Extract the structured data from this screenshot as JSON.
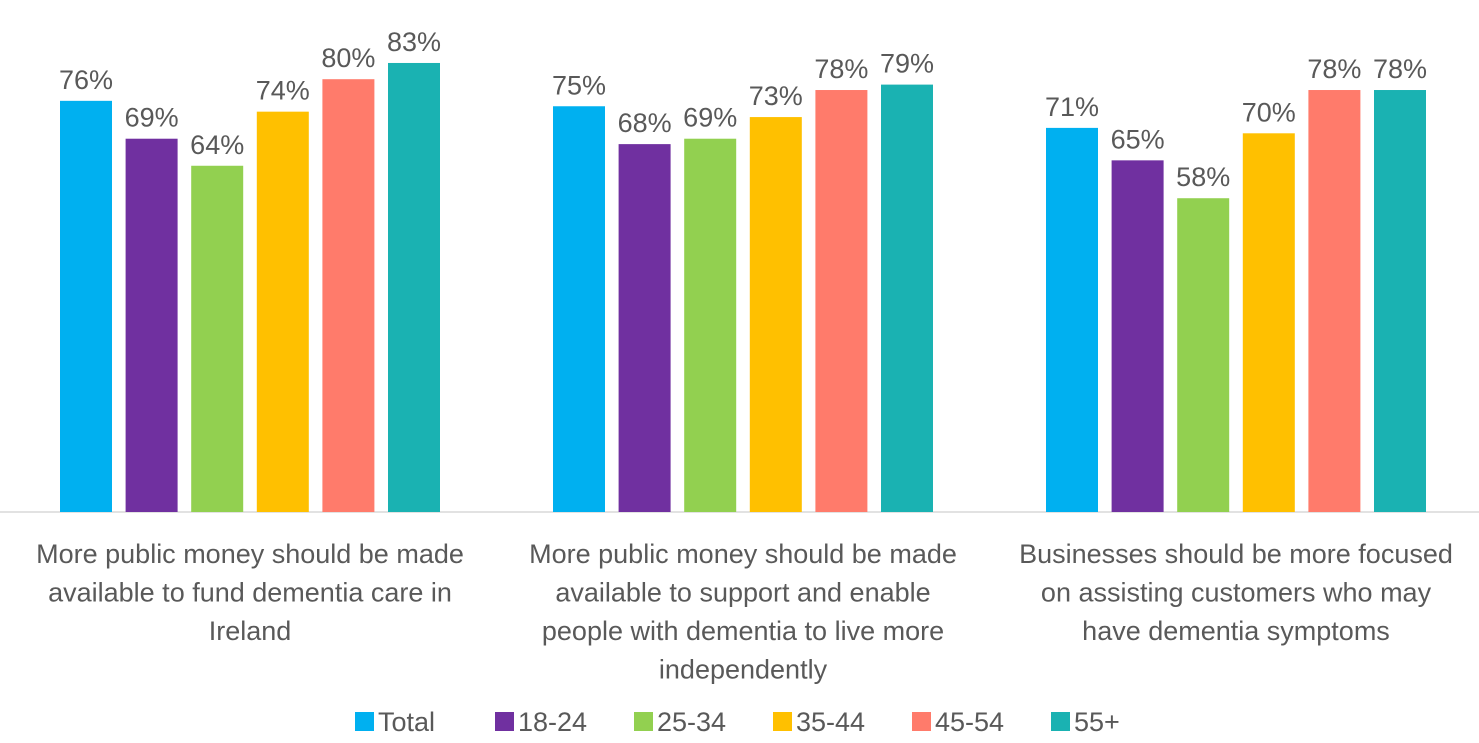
{
  "chart_data": {
    "type": "bar",
    "categories": [
      [
        "More public money should be made",
        "available to fund dementia care in",
        "Ireland"
      ],
      [
        "More public money should be made",
        "available to support and enable",
        "people with dementia to live more",
        "independently"
      ],
      [
        "Businesses should be more focused",
        "on assisting customers who may",
        "have dementia symptoms"
      ]
    ],
    "series": [
      {
        "name": "Total",
        "color": "#00B0F0",
        "values": [
          76,
          75,
          71
        ]
      },
      {
        "name": "18-24",
        "color": "#7030A0",
        "values": [
          69,
          68,
          65
        ]
      },
      {
        "name": "25-34",
        "color": "#92D050",
        "values": [
          64,
          69,
          58
        ]
      },
      {
        "name": "35-44",
        "color": "#FFC000",
        "values": [
          74,
          73,
          70
        ]
      },
      {
        "name": "45-54",
        "color": "#FF7B6B",
        "values": [
          80,
          78,
          78
        ]
      },
      {
        "name": "55+",
        "color": "#1AB2B2",
        "values": [
          83,
          79,
          78
        ]
      }
    ],
    "value_suffix": "%",
    "ylim": [
      0,
      90
    ],
    "grid": false,
    "legend_position": "bottom",
    "title": "",
    "xlabel": "",
    "ylabel": ""
  }
}
